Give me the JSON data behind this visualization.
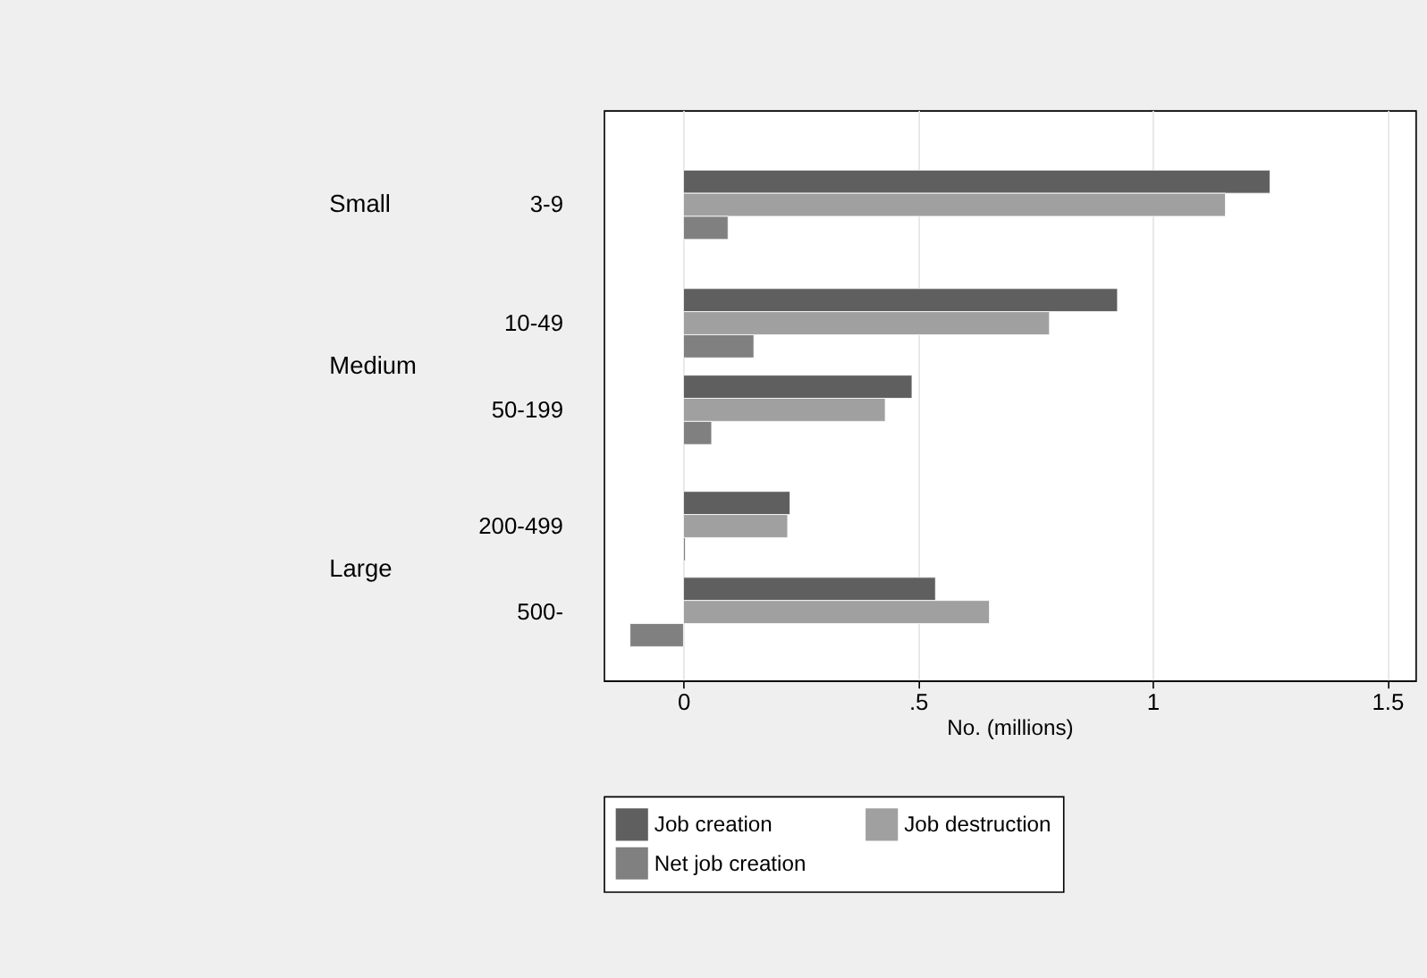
{
  "chart_data": {
    "type": "bar",
    "orientation": "horizontal",
    "xlabel": "No. (millions)",
    "categories": [
      "3-9",
      "10-49",
      "50-199",
      "200-499",
      "500-"
    ],
    "annotations": [
      "Small",
      "Medium",
      "Large"
    ],
    "series": [
      {
        "name": "Job creation",
        "color": "#5f5f5f",
        "values": [
          1.25,
          0.925,
          0.487,
          0.227,
          0.537
        ]
      },
      {
        "name": "Job destruction",
        "color": "#a0a0a0",
        "values": [
          1.155,
          0.78,
          0.43,
          0.222,
          0.652
        ]
      },
      {
        "name": "Net job creation",
        "color": "#808080",
        "values": [
          0.095,
          0.15,
          0.06,
          0.004,
          -0.114
        ]
      }
    ],
    "xlim": [
      -0.17,
      1.56
    ],
    "xticks": [
      0,
      {
        "value": 0.5,
        "label": ".5"
      },
      1,
      1.5
    ],
    "grid": "x",
    "legend": "bottom"
  }
}
